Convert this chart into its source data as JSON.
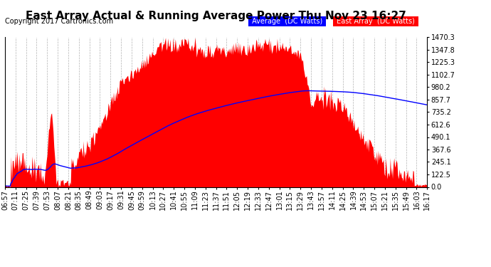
{
  "title": "East Array Actual & Running Average Power Thu Nov 23 16:27",
  "copyright": "Copyright 2017 Cartronics.com",
  "ylabel_right_ticks": [
    0.0,
    122.5,
    245.1,
    367.6,
    490.1,
    612.6,
    735.2,
    857.7,
    980.2,
    1102.7,
    1225.3,
    1347.8,
    1470.3
  ],
  "ymax": 1470.3,
  "ymin": 0.0,
  "bg_color": "#ffffff",
  "plot_bg_color": "#ffffff",
  "grid_color": "#aaaaaa",
  "fill_color": "#ff0000",
  "line_color": "#0000ff",
  "legend_avg_bg": "#0000ff",
  "legend_avg_text": "Average  (DC Watts)",
  "legend_east_bg": "#ff0000",
  "legend_east_text": "East Array  (DC Watts)",
  "title_fontsize": 11,
  "copyright_fontsize": 7,
  "tick_fontsize": 7,
  "x_labels": [
    "06:57",
    "07:11",
    "07:25",
    "07:39",
    "07:53",
    "08:07",
    "08:21",
    "08:35",
    "08:49",
    "09:03",
    "09:17",
    "09:31",
    "09:45",
    "09:59",
    "10:13",
    "10:27",
    "10:41",
    "10:55",
    "11:09",
    "11:23",
    "11:37",
    "11:51",
    "12:05",
    "12:19",
    "12:33",
    "12:47",
    "13:01",
    "13:15",
    "13:29",
    "13:43",
    "13:57",
    "14:11",
    "14:25",
    "14:39",
    "14:53",
    "15:07",
    "15:21",
    "15:35",
    "15:49",
    "16:03",
    "16:17"
  ]
}
